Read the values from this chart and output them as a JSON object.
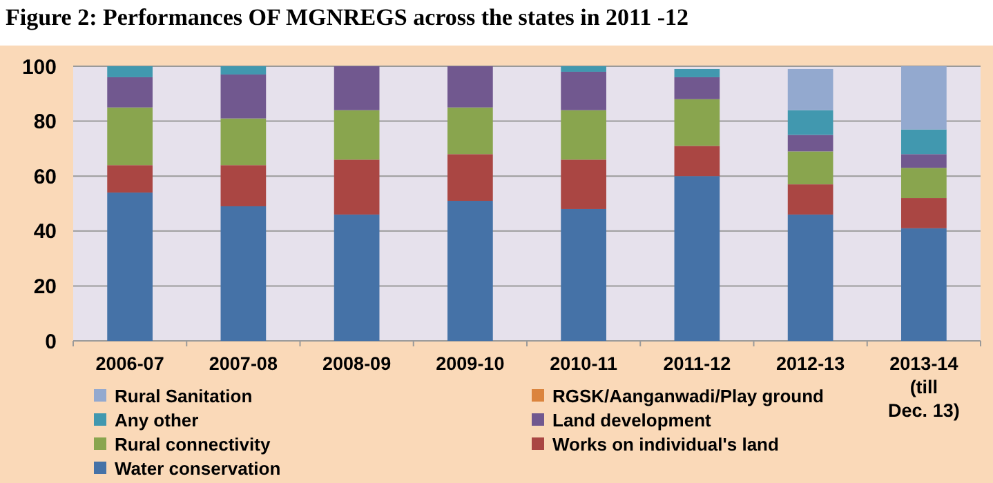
{
  "chart_data": {
    "type": "bar",
    "title": "Figure 2:        Performances OF MGNREGS across the states in 2011 -12",
    "stacked": true,
    "categories": [
      "2006-07",
      "2007-08",
      "2008-09",
      "2009-10",
      "2010-11",
      "2011-12",
      "2012-13",
      "2013-14 (till Dec. 13)"
    ],
    "series": [
      {
        "name": "Water conservation",
        "color": "#4572a7",
        "values": [
          54,
          49,
          46,
          51,
          48,
          60,
          46,
          41
        ]
      },
      {
        "name": "Works on individual's land",
        "color": "#aa4643",
        "values": [
          10,
          15,
          20,
          17,
          18,
          11,
          11,
          11
        ]
      },
      {
        "name": "Rural connectivity",
        "color": "#89a54e",
        "values": [
          21,
          17,
          18,
          17,
          18,
          17,
          12,
          11
        ]
      },
      {
        "name": "Land development",
        "color": "#71588f",
        "values": [
          11,
          16,
          16,
          15,
          14,
          8,
          6,
          5
        ]
      },
      {
        "name": "Any other",
        "color": "#4198af",
        "values": [
          4,
          3,
          0,
          0,
          2,
          3,
          9,
          9
        ]
      },
      {
        "name": "RGSK/Aanganwadi/Play ground",
        "color": "#db843d",
        "values": [
          0,
          0,
          0,
          0,
          0,
          0,
          0,
          0
        ]
      },
      {
        "name": "Rural Sanitation",
        "color": "#93a9cf",
        "values": [
          0,
          0,
          0,
          0,
          0,
          0,
          15,
          23
        ]
      }
    ],
    "ylim": [
      0,
      100
    ],
    "yticks": [
      0,
      20,
      40,
      60,
      80,
      100
    ],
    "grid": "y",
    "legend": "bottom"
  }
}
